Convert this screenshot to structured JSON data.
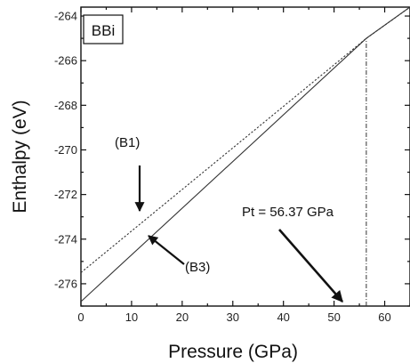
{
  "chart_data": {
    "type": "line",
    "panel_label": "BBi",
    "xlabel": "Pressure (GPa)",
    "ylabel": "Enthalpy (eV)",
    "xlim": [
      0,
      65
    ],
    "ylim": [
      -277,
      -263.6
    ],
    "xticks": [
      0,
      10,
      20,
      30,
      40,
      50,
      60
    ],
    "yticks": [
      -264,
      -266,
      -268,
      -270,
      -272,
      -274,
      -276
    ],
    "grid": false,
    "series": [
      {
        "name": "(B1)",
        "style": "dotted",
        "x": [
          0,
          56.37,
          65
        ],
        "y": [
          -275.5,
          -265.0,
          -263.6
        ]
      },
      {
        "name": "(B3)",
        "style": "solid",
        "x": [
          0,
          56.37,
          65
        ],
        "y": [
          -276.8,
          -265.0,
          -263.6
        ]
      }
    ],
    "transition": {
      "label": "Pt = 56.37 GPa",
      "x": 56.37
    }
  },
  "colors": {
    "line": "#333333",
    "axis": "#111111",
    "arrow": "#111111"
  }
}
